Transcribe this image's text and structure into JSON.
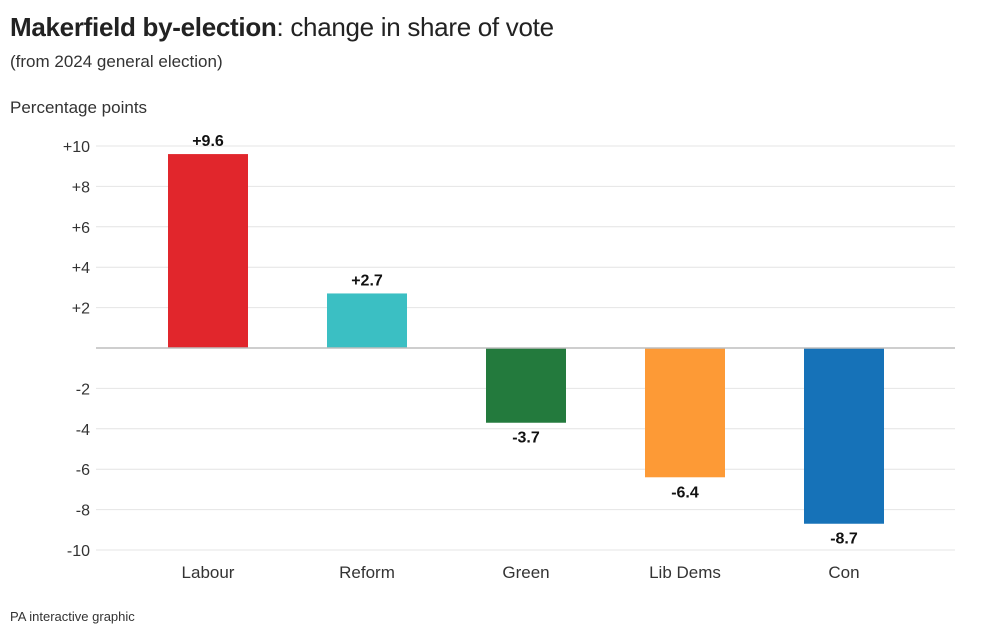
{
  "title_bold": "Makerfield by-election",
  "title_rest": ": change in share of vote",
  "subtitle": "(from 2024 general election)",
  "source": "PA interactive graphic",
  "chart_data": {
    "type": "bar",
    "ylabel": "Percentage points",
    "categories": [
      "Labour",
      "Reform",
      "Green",
      "Lib Dems",
      "Con"
    ],
    "values": [
      9.6,
      2.7,
      -3.7,
      -6.4,
      -8.7
    ],
    "value_labels": [
      "+9.6",
      "+2.7",
      "-3.7",
      "-6.4",
      "-8.7"
    ],
    "colors": [
      "#e1262c",
      "#3bbfc3",
      "#237a3d",
      "#fd9a36",
      "#1672b8"
    ],
    "ylim": [
      -10,
      10
    ],
    "yticks": [
      10,
      8,
      6,
      4,
      2,
      -2,
      -4,
      -6,
      -8,
      -10
    ],
    "ytick_labels": [
      "+10",
      "+8",
      "+6",
      "+4",
      "+2",
      "-2",
      "-4",
      "-6",
      "-8",
      "-10"
    ],
    "grid": true,
    "legend": "none"
  }
}
